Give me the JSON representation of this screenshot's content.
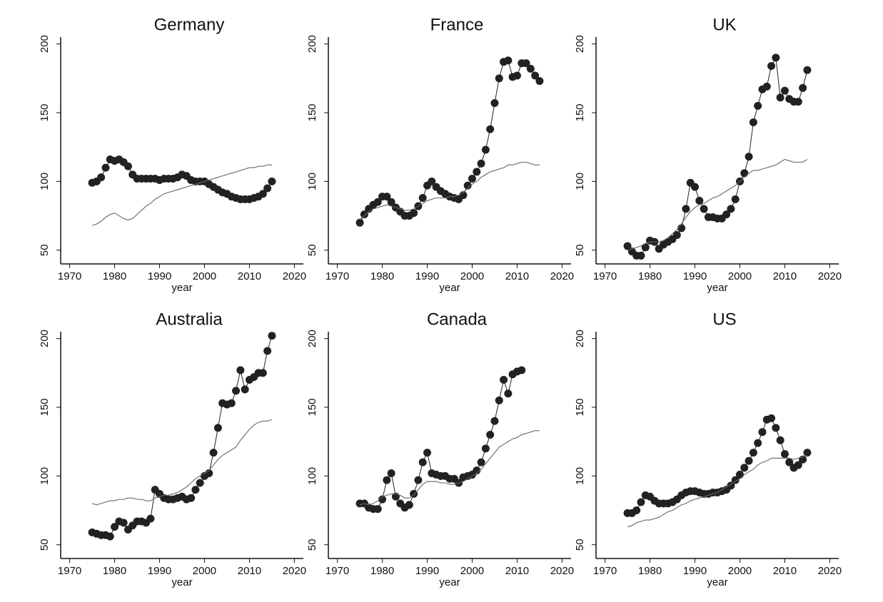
{
  "chart_data": [
    {
      "type": "line",
      "title": "Germany",
      "x_label": "year",
      "x": [
        1975,
        1976,
        1977,
        1978,
        1979,
        1980,
        1981,
        1982,
        1983,
        1984,
        1985,
        1986,
        1987,
        1988,
        1989,
        1990,
        1991,
        1992,
        1993,
        1994,
        1995,
        1996,
        1997,
        1998,
        1999,
        2000,
        2001,
        2002,
        2003,
        2004,
        2005,
        2006,
        2007,
        2008,
        2009,
        2010,
        2011,
        2012,
        2013,
        2014,
        2015
      ],
      "series": [
        {
          "color": "#222222",
          "marker": "circle",
          "values": [
            99,
            100,
            103,
            110,
            116,
            115,
            116,
            114,
            111,
            105,
            102,
            102,
            102,
            102,
            102,
            101,
            102,
            102,
            102,
            103,
            105,
            104,
            101,
            100,
            100,
            100,
            98,
            96,
            94,
            92,
            91,
            89,
            88,
            87,
            87,
            87,
            88,
            89,
            91,
            95,
            100
          ]
        },
        {
          "color": "#666666",
          "values": [
            68,
            69,
            71,
            74,
            76,
            77,
            75,
            73,
            72,
            73,
            76,
            79,
            82,
            84,
            87,
            89,
            91,
            92,
            93,
            94,
            95,
            96,
            97,
            98,
            99,
            100,
            101,
            102,
            103,
            104,
            105,
            106,
            107,
            108,
            109,
            110,
            110,
            111,
            111,
            112,
            112
          ]
        }
      ],
      "xlim": [
        1968,
        2022
      ],
      "xticks": [
        1970,
        1980,
        1990,
        2000,
        2010,
        2020
      ],
      "ylim": [
        40,
        205
      ],
      "yticks": [
        50,
        100,
        150,
        200
      ]
    },
    {
      "type": "line",
      "title": "France",
      "x_label": "year",
      "x": [
        1975,
        1976,
        1977,
        1978,
        1979,
        1980,
        1981,
        1982,
        1983,
        1984,
        1985,
        1986,
        1987,
        1988,
        1989,
        1990,
        1991,
        1992,
        1993,
        1994,
        1995,
        1996,
        1997,
        1998,
        1999,
        2000,
        2001,
        2002,
        2003,
        2004,
        2005,
        2006,
        2007,
        2008,
        2009,
        2010,
        2011,
        2012,
        2013,
        2014,
        2015
      ],
      "series": [
        {
          "color": "#222222",
          "marker": "circle",
          "values": [
            70,
            76,
            80,
            83,
            85,
            89,
            89,
            85,
            81,
            78,
            75,
            75,
            77,
            82,
            88,
            97,
            100,
            96,
            93,
            91,
            89,
            88,
            87,
            90,
            97,
            102,
            107,
            113,
            123,
            138,
            157,
            175,
            187,
            188,
            176,
            177,
            186,
            186,
            182,
            177,
            173
          ]
        },
        {
          "color": "#666666",
          "values": [
            72,
            75,
            78,
            80,
            81,
            82,
            83,
            82,
            81,
            80,
            79,
            79,
            80,
            82,
            84,
            86,
            87,
            88,
            88,
            88,
            89,
            89,
            90,
            92,
            95,
            98,
            100,
            103,
            105,
            107,
            108,
            109,
            110,
            112,
            112,
            113,
            114,
            114,
            113,
            112,
            112
          ]
        }
      ],
      "xlim": [
        1968,
        2022
      ],
      "xticks": [
        1970,
        1980,
        1990,
        2000,
        2010,
        2020
      ],
      "ylim": [
        40,
        205
      ],
      "yticks": [
        50,
        100,
        150,
        200
      ]
    },
    {
      "type": "line",
      "title": "UK",
      "x_label": "year",
      "x": [
        1975,
        1976,
        1977,
        1978,
        1979,
        1980,
        1981,
        1982,
        1983,
        1984,
        1985,
        1986,
        1987,
        1988,
        1989,
        1990,
        1991,
        1992,
        1993,
        1994,
        1995,
        1996,
        1997,
        1998,
        1999,
        2000,
        2001,
        2002,
        2003,
        2004,
        2005,
        2006,
        2007,
        2008,
        2009,
        2010,
        2011,
        2012,
        2013,
        2014,
        2015
      ],
      "series": [
        {
          "color": "#222222",
          "marker": "circle",
          "values": [
            53,
            49,
            46,
            46,
            52,
            57,
            56,
            51,
            54,
            56,
            58,
            61,
            66,
            80,
            99,
            96,
            86,
            80,
            74,
            74,
            73,
            73,
            76,
            80,
            87,
            100,
            106,
            118,
            143,
            155,
            167,
            169,
            184,
            190,
            161,
            166,
            160,
            158,
            158,
            168,
            181
          ]
        },
        {
          "color": "#666666",
          "values": [
            50,
            51,
            52,
            53,
            55,
            56,
            56,
            56,
            57,
            59,
            62,
            65,
            69,
            74,
            78,
            81,
            83,
            84,
            86,
            88,
            89,
            91,
            93,
            95,
            97,
            100,
            103,
            106,
            108,
            108,
            109,
            110,
            111,
            112,
            114,
            116,
            115,
            114,
            114,
            114,
            116
          ]
        }
      ],
      "xlim": [
        1968,
        2022
      ],
      "xticks": [
        1970,
        1980,
        1990,
        2000,
        2010,
        2020
      ],
      "ylim": [
        40,
        205
      ],
      "yticks": [
        50,
        100,
        150,
        200
      ]
    },
    {
      "type": "line",
      "title": "Australia",
      "x_label": "year",
      "x": [
        1975,
        1976,
        1977,
        1978,
        1979,
        1980,
        1981,
        1982,
        1983,
        1984,
        1985,
        1986,
        1987,
        1988,
        1989,
        1990,
        1991,
        1992,
        1993,
        1994,
        1995,
        1996,
        1997,
        1998,
        1999,
        2000,
        2001,
        2002,
        2003,
        2004,
        2005,
        2006,
        2007,
        2008,
        2009,
        2010,
        2011,
        2012,
        2013,
        2014,
        2015
      ],
      "series": [
        {
          "color": "#222222",
          "marker": "circle",
          "values": [
            59,
            58,
            57,
            57,
            56,
            63,
            67,
            66,
            61,
            64,
            67,
            67,
            66,
            69,
            90,
            87,
            84,
            83,
            83,
            84,
            85,
            83,
            84,
            90,
            95,
            100,
            102,
            117,
            135,
            153,
            152,
            153,
            162,
            177,
            163,
            170,
            172,
            175,
            175,
            191,
            202
          ]
        },
        {
          "color": "#666666",
          "values": [
            80,
            79,
            80,
            81,
            82,
            82,
            83,
            83,
            84,
            84,
            83,
            83,
            82,
            82,
            84,
            85,
            86,
            86,
            87,
            88,
            90,
            92,
            95,
            98,
            100,
            102,
            104,
            108,
            112,
            115,
            117,
            119,
            121,
            126,
            130,
            134,
            137,
            139,
            140,
            140,
            141
          ]
        }
      ],
      "xlim": [
        1968,
        2022
      ],
      "xticks": [
        1970,
        1980,
        1990,
        2000,
        2010,
        2020
      ],
      "ylim": [
        40,
        205
      ],
      "yticks": [
        50,
        100,
        150,
        200
      ]
    },
    {
      "type": "line",
      "title": "Canada",
      "x_label": "year",
      "x": [
        1975,
        1976,
        1977,
        1978,
        1979,
        1980,
        1981,
        1982,
        1983,
        1984,
        1985,
        1986,
        1987,
        1988,
        1989,
        1990,
        1991,
        1992,
        1993,
        1994,
        1995,
        1996,
        1997,
        1998,
        1999,
        2000,
        2001,
        2002,
        2003,
        2004,
        2005,
        2006,
        2007,
        2008,
        2009,
        2010,
        2011,
        2012,
        2013,
        2014,
        2015
      ],
      "series": [
        {
          "color": "#222222",
          "marker": "circle",
          "values": [
            80,
            80,
            77,
            76,
            76,
            83,
            97,
            102,
            85,
            80,
            77,
            79,
            87,
            97,
            110,
            117,
            102,
            101,
            100,
            100,
            98,
            98,
            95,
            99,
            100,
            101,
            104,
            110,
            120,
            130,
            140,
            155,
            170,
            160,
            174,
            176,
            177,
            null,
            null,
            null,
            null
          ]
        },
        {
          "color": "#666666",
          "values": [
            79,
            80,
            79,
            80,
            82,
            85,
            86,
            87,
            87,
            86,
            84,
            84,
            86,
            90,
            94,
            96,
            96,
            96,
            95,
            95,
            94,
            94,
            95,
            96,
            98,
            100,
            102,
            105,
            109,
            113,
            117,
            121,
            123,
            125,
            127,
            128,
            130,
            131,
            132,
            133,
            133
          ]
        }
      ],
      "xlim": [
        1968,
        2022
      ],
      "xticks": [
        1970,
        1980,
        1990,
        2000,
        2010,
        2020
      ],
      "ylim": [
        40,
        205
      ],
      "yticks": [
        50,
        100,
        150,
        200
      ]
    },
    {
      "type": "line",
      "title": "US",
      "x_label": "year",
      "x": [
        1975,
        1976,
        1977,
        1978,
        1979,
        1980,
        1981,
        1982,
        1983,
        1984,
        1985,
        1986,
        1987,
        1988,
        1989,
        1990,
        1991,
        1992,
        1993,
        1994,
        1995,
        1996,
        1997,
        1998,
        1999,
        2000,
        2001,
        2002,
        2003,
        2004,
        2005,
        2006,
        2007,
        2008,
        2009,
        2010,
        2011,
        2012,
        2013,
        2014,
        2015
      ],
      "series": [
        {
          "color": "#222222",
          "marker": "circle",
          "values": [
            73,
            73,
            75,
            81,
            86,
            85,
            82,
            80,
            80,
            80,
            81,
            83,
            86,
            88,
            89,
            89,
            88,
            87,
            87,
            88,
            88,
            89,
            90,
            93,
            97,
            101,
            106,
            111,
            117,
            124,
            132,
            141,
            142,
            135,
            126,
            116,
            110,
            106,
            108,
            112,
            117
          ]
        },
        {
          "color": "#666666",
          "values": [
            63,
            64,
            66,
            67,
            68,
            68,
            69,
            70,
            72,
            74,
            75,
            77,
            79,
            80,
            82,
            83,
            84,
            85,
            86,
            87,
            88,
            90,
            92,
            94,
            96,
            98,
            101,
            103,
            105,
            108,
            110,
            111,
            113,
            113,
            113,
            113,
            113,
            112,
            113,
            114,
            115
          ]
        }
      ],
      "xlim": [
        1968,
        2022
      ],
      "xticks": [
        1970,
        1980,
        1990,
        2000,
        2010,
        2020
      ],
      "ylim": [
        40,
        205
      ],
      "yticks": [
        50,
        100,
        150,
        200
      ]
    }
  ]
}
